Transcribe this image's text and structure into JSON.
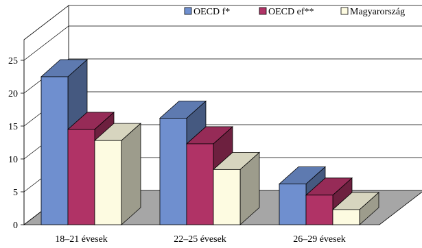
{
  "chart_data": {
    "type": "bar",
    "title": "",
    "xlabel": "",
    "ylabel": "",
    "categories": [
      "18–21 évesek",
      "22–25 évesek",
      "26–29 évesek"
    ],
    "series": [
      {
        "name": "OECD f*",
        "values": [
          22.5,
          16.2,
          6.2
        ],
        "color": "#6f8fcf"
      },
      {
        "name": "OECD ef**",
        "values": [
          14.5,
          12.3,
          4.5
        ],
        "color": "#b03366"
      },
      {
        "name": "Magyarország",
        "values": [
          12.8,
          8.4,
          2.3
        ],
        "color": "#fdfbe1"
      }
    ],
    "ylim": [
      0,
      25
    ],
    "yticks": [
      0,
      5,
      10,
      15,
      20,
      25
    ],
    "grid": true,
    "legend": "top-right",
    "projection": "3d-oblique"
  }
}
